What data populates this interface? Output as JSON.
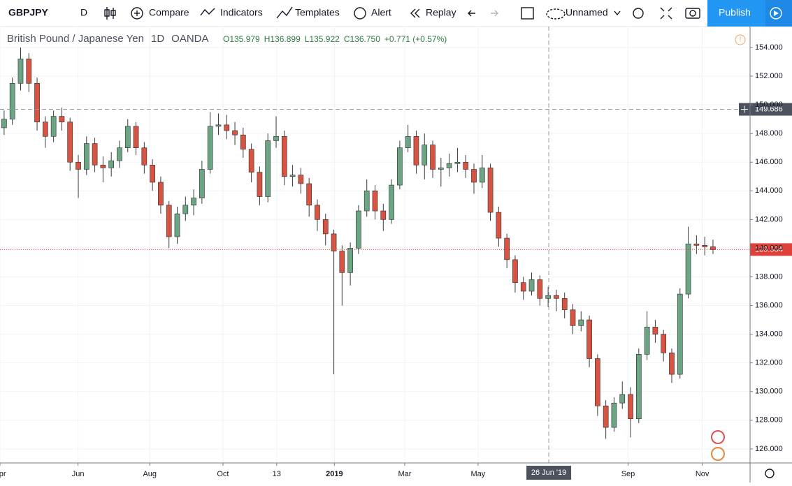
{
  "toolbar": {
    "symbol": "GBPJPY",
    "interval": "D",
    "compare": "Compare",
    "indicators": "Indicators",
    "templates": "Templates",
    "alert": "Alert",
    "replay": "Replay",
    "layout": "Unnamed",
    "publish": "Publish"
  },
  "chart_data": {
    "type": "candlestick",
    "legend": {
      "title": "British Pound / Japanese Yen",
      "interval": "1D",
      "source": "OANDA",
      "open": "O135.979",
      "high": "H136.899",
      "low": "L135.922",
      "close": "C136.750",
      "change": "+0.771 (+0.57%)"
    },
    "up_color": "#6ba583",
    "down_color": "#d75442",
    "grid": true,
    "xlim": [
      -0.5,
      90.5
    ],
    "ylim": [
      125.02,
      155.46
    ],
    "xticks": [
      {
        "value": -0.5,
        "label": "Apr"
      },
      {
        "value": 8.97,
        "label": "Jun"
      },
      {
        "value": 17.67,
        "label": "Aug"
      },
      {
        "value": 26.55,
        "label": "Oct"
      },
      {
        "value": 33.06,
        "label": "13"
      },
      {
        "value": 40.07,
        "label": "2019"
      },
      {
        "value": 48.6,
        "label": "Mar"
      },
      {
        "value": 57.5,
        "label": "May"
      },
      {
        "value": 75.7,
        "label": "Sep"
      },
      {
        "value": 84.7,
        "label": "Nov"
      }
    ],
    "yticks": [
      {
        "value": 126,
        "label": "126.000"
      },
      {
        "value": 128,
        "label": "128.000"
      },
      {
        "value": 130,
        "label": "130.000"
      },
      {
        "value": 132,
        "label": "132.000"
      },
      {
        "value": 134,
        "label": "134.000"
      },
      {
        "value": 136,
        "label": "136.000"
      },
      {
        "value": 138,
        "label": "138.000"
      },
      {
        "value": 140,
        "label": "140.000"
      },
      {
        "value": 142,
        "label": "142.000"
      },
      {
        "value": 144,
        "label": "144.000"
      },
      {
        "value": 146,
        "label": "146.000"
      },
      {
        "value": 148,
        "label": "148.000"
      },
      {
        "value": 150,
        "label": "150.000"
      },
      {
        "value": 152,
        "label": "152.000"
      },
      {
        "value": 154,
        "label": "154.000"
      }
    ],
    "last_price": 139.904,
    "crosshair_price": 149.686,
    "crosshair_x": {
      "value": 66.08,
      "label": "26 Jun '19"
    },
    "open": [
      148.4,
      149.0,
      151.5,
      153.2,
      151.5,
      148.8,
      147.8,
      149.2,
      148.8,
      146.0,
      145.5,
      147.3,
      145.8,
      145.6,
      146.1,
      147.0,
      148.5,
      147.0,
      145.8,
      144.6,
      143.0,
      140.8,
      142.4,
      143.0,
      143.5,
      145.5,
      148.5,
      148.6,
      148.2,
      147.9,
      146.9,
      145.3,
      143.6,
      147.5,
      147.8,
      145.0,
      145.1,
      144.5,
      143.0,
      142.0,
      141.0,
      139.8,
      138.3,
      140.0,
      142.6,
      144.0,
      142.6,
      142.0,
      144.4,
      147.0,
      147.8,
      145.8,
      147.2,
      145.5,
      145.6,
      145.9,
      146.0,
      145.5,
      144.6,
      145.6,
      142.5,
      140.7,
      139.2,
      137.6,
      137.0,
      137.8,
      136.5,
      136.7,
      136.5,
      135.7,
      134.6,
      135.0,
      132.3,
      129.0,
      127.5,
      129.2,
      129.8,
      128.1,
      132.6,
      134.5,
      134.0,
      132.7,
      131.2,
      136.8,
      140.3,
      140.2,
      140.1
    ],
    "high": [
      149.6,
      151.9,
      154.0,
      153.6,
      151.9,
      149.2,
      149.6,
      149.8,
      149.1,
      146.5,
      147.8,
      147.7,
      146.4,
      146.7,
      147.5,
      149.0,
      148.8,
      147.4,
      146.2,
      145.0,
      143.3,
      142.9,
      143.6,
      144.1,
      146.1,
      149.5,
      149.4,
      149.3,
      148.8,
      148.4,
      147.3,
      145.7,
      148.0,
      149.2,
      148.2,
      145.8,
      145.6,
      144.9,
      143.4,
      142.4,
      141.3,
      140.2,
      140.4,
      143.0,
      144.8,
      144.4,
      143.1,
      144.8,
      147.5,
      148.6,
      148.2,
      148.0,
      147.5,
      146.3,
      146.6,
      147.0,
      146.5,
      145.9,
      146.5,
      145.9,
      142.9,
      141.0,
      139.5,
      138.0,
      138.3,
      138.1,
      137.3,
      137.1,
      136.9,
      136.1,
      135.6,
      135.3,
      132.6,
      129.4,
      129.6,
      130.7,
      130.3,
      133.0,
      135.6,
      135.0,
      134.3,
      133.0,
      137.2,
      141.5,
      140.9,
      140.8,
      140.6
    ],
    "low": [
      147.9,
      148.6,
      151.0,
      150.9,
      148.2,
      147.0,
      147.4,
      148.2,
      145.4,
      143.5,
      145.1,
      145.3,
      144.6,
      145.0,
      145.6,
      146.7,
      146.5,
      145.2,
      144.0,
      142.4,
      140.0,
      140.3,
      141.9,
      142.3,
      143.1,
      145.2,
      147.9,
      147.6,
      147.2,
      146.3,
      144.6,
      143.0,
      143.2,
      147.0,
      144.4,
      144.3,
      143.8,
      142.2,
      141.2,
      140.2,
      131.2,
      136.0,
      137.4,
      139.6,
      142.2,
      142.0,
      141.2,
      141.7,
      144.1,
      146.7,
      145.2,
      144.8,
      144.9,
      144.3,
      145.0,
      145.3,
      144.9,
      143.8,
      144.2,
      141.9,
      140.1,
      138.6,
      136.9,
      136.4,
      136.7,
      136.0,
      135.9,
      135.6,
      135.1,
      134.0,
      134.2,
      131.7,
      128.3,
      126.7,
      127.2,
      128.8,
      126.8,
      127.8,
      132.2,
      133.4,
      132.1,
      130.6,
      130.9,
      136.5,
      139.6,
      139.5,
      139.6
    ],
    "close": [
      149.0,
      151.5,
      153.2,
      151.5,
      148.8,
      147.8,
      149.2,
      148.8,
      146.0,
      145.5,
      147.3,
      145.8,
      145.6,
      146.1,
      147.0,
      148.5,
      147.0,
      145.8,
      144.6,
      143.0,
      140.8,
      142.4,
      143.0,
      143.5,
      145.5,
      148.5,
      148.6,
      148.2,
      147.9,
      146.9,
      145.3,
      143.6,
      147.5,
      147.8,
      145.0,
      145.1,
      144.5,
      143.0,
      142.0,
      141.0,
      139.8,
      138.3,
      140.0,
      142.6,
      144.0,
      142.6,
      142.0,
      144.4,
      147.0,
      147.8,
      145.8,
      147.2,
      145.5,
      145.6,
      145.9,
      146.0,
      145.5,
      144.6,
      145.6,
      142.5,
      140.7,
      139.2,
      137.6,
      137.0,
      137.8,
      136.5,
      136.7,
      136.5,
      135.7,
      134.6,
      135.0,
      132.3,
      129.0,
      127.5,
      129.2,
      129.8,
      128.1,
      132.6,
      134.5,
      134.0,
      132.7,
      131.2,
      136.8,
      140.3,
      140.2,
      140.1,
      139.9
    ]
  }
}
